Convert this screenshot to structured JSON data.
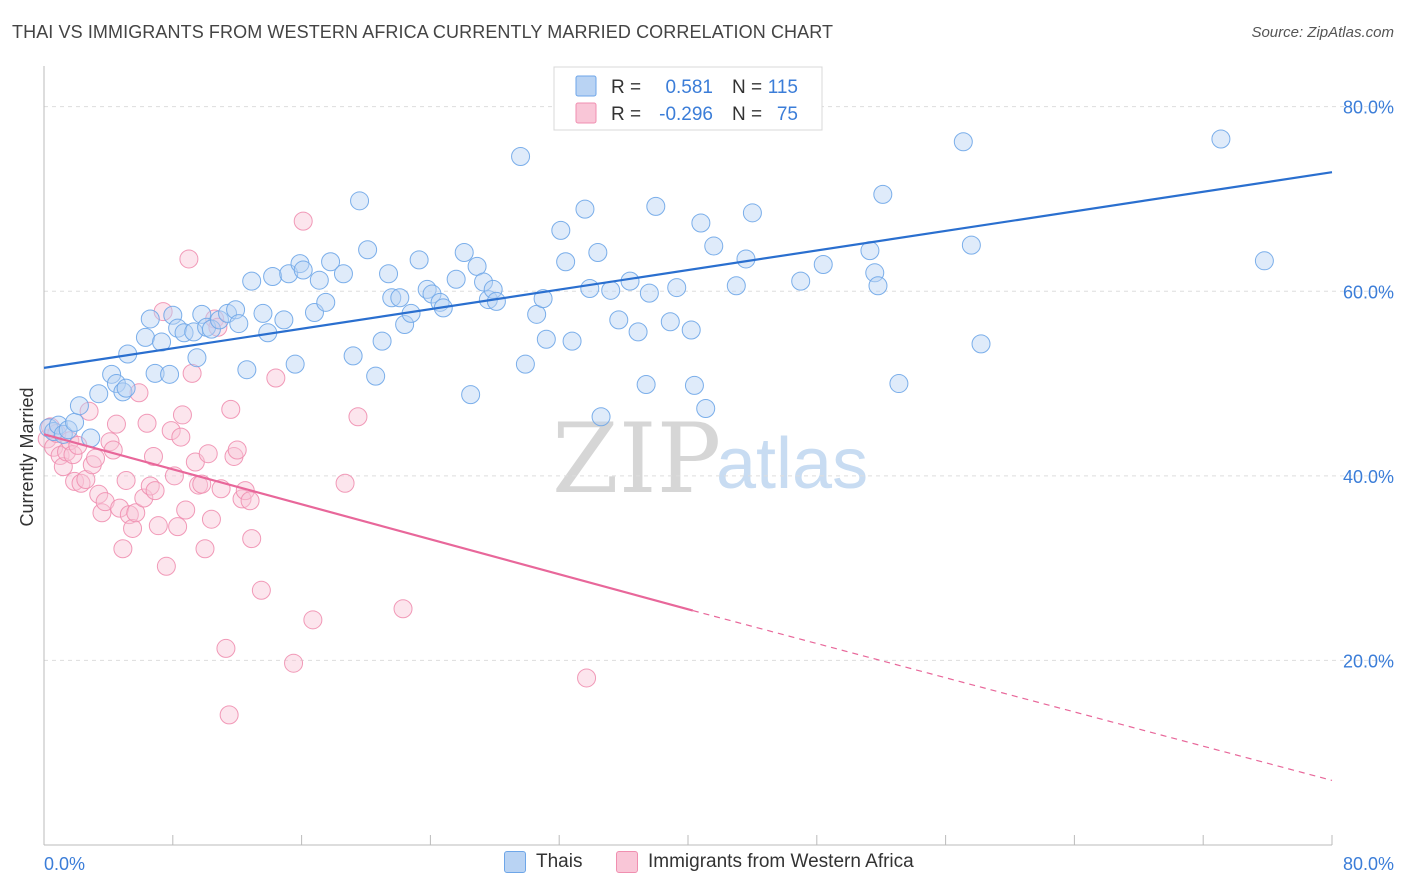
{
  "header": {
    "title": "THAI VS IMMIGRANTS FROM WESTERN AFRICA CURRENTLY MARRIED CORRELATION CHART",
    "source": "Source: ZipAtlas.com"
  },
  "colors": {
    "blue": "#6ea6e8",
    "blue_fill": "#b9d3f3",
    "blue_line": "#2a6fcf",
    "pink": "#f08fb0",
    "pink_fill": "#f9c6d7",
    "pink_line": "#e8679a",
    "tick_text": "#3b7dd8",
    "grid": "#dddddd"
  },
  "watermark": {
    "zip": "ZIP",
    "atlas": "atlas"
  },
  "legend": {
    "rows": [
      {
        "r_label": "R =",
        "r_value": "0.581",
        "n_label": "N =",
        "n_value": "115"
      },
      {
        "r_label": "R =",
        "r_value": "-0.296",
        "n_label": "N =",
        "n_value": "75"
      }
    ]
  },
  "bottom_legend": {
    "series1": "Thais",
    "series2": "Immigrants from Western Africa"
  },
  "chart_data": {
    "type": "scatter",
    "title": "THAI VS IMMIGRANTS FROM WESTERN AFRICA CURRENTLY MARRIED CORRELATION CHART",
    "xlabel": "",
    "ylabel": "Currently Married",
    "xlim": [
      0,
      80
    ],
    "ylim": [
      0,
      83
    ],
    "x_tick_labels": [
      "0.0%",
      "80.0%"
    ],
    "y_ticks": [
      20,
      40,
      60,
      80
    ],
    "y_tick_labels": [
      "20.0%",
      "40.0%",
      "60.0%",
      "80.0%"
    ],
    "grid": "horizontal dashed",
    "legend_position": "top-center",
    "series": [
      {
        "name": "Thais",
        "r": 0.581,
        "n": 115,
        "trend": {
          "x": [
            0,
            80
          ],
          "y": [
            51.7,
            72.9
          ]
        },
        "points": [
          [
            0.3,
            45.2
          ],
          [
            0.6,
            44.8
          ],
          [
            0.9,
            45.5
          ],
          [
            1.2,
            44.5
          ],
          [
            1.5,
            45.0
          ],
          [
            1.9,
            45.8
          ],
          [
            2.2,
            47.6
          ],
          [
            2.9,
            44.1
          ],
          [
            3.4,
            48.9
          ],
          [
            4.2,
            51.0
          ],
          [
            4.5,
            50.0
          ],
          [
            4.9,
            49.1
          ],
          [
            5.1,
            49.5
          ],
          [
            5.2,
            53.2
          ],
          [
            6.3,
            55.0
          ],
          [
            6.6,
            57.0
          ],
          [
            6.9,
            51.1
          ],
          [
            7.3,
            54.5
          ],
          [
            7.8,
            51.0
          ],
          [
            8.0,
            57.4
          ],
          [
            8.3,
            56.0
          ],
          [
            8.7,
            55.5
          ],
          [
            9.3,
            55.6
          ],
          [
            9.5,
            52.8
          ],
          [
            9.8,
            57.5
          ],
          [
            10.1,
            56.1
          ],
          [
            10.4,
            55.9
          ],
          [
            10.9,
            56.9
          ],
          [
            11.4,
            57.6
          ],
          [
            11.9,
            58.0
          ],
          [
            12.1,
            56.5
          ],
          [
            12.6,
            51.5
          ],
          [
            12.9,
            61.1
          ],
          [
            13.6,
            57.6
          ],
          [
            13.9,
            55.5
          ],
          [
            14.2,
            61.6
          ],
          [
            14.9,
            56.9
          ],
          [
            15.2,
            61.9
          ],
          [
            15.6,
            52.1
          ],
          [
            15.9,
            63.0
          ],
          [
            16.1,
            62.3
          ],
          [
            16.8,
            57.7
          ],
          [
            17.1,
            61.2
          ],
          [
            17.5,
            58.8
          ],
          [
            17.8,
            63.2
          ],
          [
            18.6,
            61.9
          ],
          [
            19.2,
            53.0
          ],
          [
            19.6,
            69.8
          ],
          [
            20.1,
            64.5
          ],
          [
            20.6,
            50.8
          ],
          [
            21.0,
            54.6
          ],
          [
            21.4,
            61.9
          ],
          [
            21.6,
            59.3
          ],
          [
            22.1,
            59.3
          ],
          [
            22.4,
            56.4
          ],
          [
            22.8,
            57.6
          ],
          [
            23.3,
            63.4
          ],
          [
            23.8,
            60.2
          ],
          [
            24.1,
            59.7
          ],
          [
            24.6,
            58.8
          ],
          [
            24.8,
            58.2
          ],
          [
            25.6,
            61.3
          ],
          [
            26.1,
            64.2
          ],
          [
            26.5,
            48.8
          ],
          [
            26.9,
            62.7
          ],
          [
            27.3,
            61.0
          ],
          [
            27.6,
            59.1
          ],
          [
            27.9,
            60.2
          ],
          [
            28.1,
            58.9
          ],
          [
            29.6,
            74.6
          ],
          [
            29.9,
            52.1
          ],
          [
            30.6,
            57.5
          ],
          [
            31.0,
            59.2
          ],
          [
            31.2,
            54.8
          ],
          [
            32.1,
            66.6
          ],
          [
            32.4,
            63.2
          ],
          [
            32.8,
            54.6
          ],
          [
            33.6,
            68.9
          ],
          [
            33.9,
            60.3
          ],
          [
            34.4,
            64.2
          ],
          [
            34.6,
            46.4
          ],
          [
            35.2,
            60.1
          ],
          [
            35.7,
            56.9
          ],
          [
            36.4,
            61.1
          ],
          [
            36.9,
            55.6
          ],
          [
            37.4,
            49.9
          ],
          [
            37.6,
            59.8
          ],
          [
            38.0,
            69.2
          ],
          [
            38.9,
            56.7
          ],
          [
            39.3,
            60.4
          ],
          [
            40.2,
            55.8
          ],
          [
            40.4,
            49.8
          ],
          [
            40.8,
            67.4
          ],
          [
            41.1,
            47.3
          ],
          [
            41.6,
            64.9
          ],
          [
            43.0,
            60.6
          ],
          [
            43.6,
            63.5
          ],
          [
            44.0,
            68.5
          ],
          [
            47.0,
            61.1
          ],
          [
            48.4,
            62.9
          ],
          [
            51.3,
            64.4
          ],
          [
            51.6,
            62.0
          ],
          [
            51.8,
            60.6
          ],
          [
            52.1,
            70.5
          ],
          [
            53.1,
            50.0
          ],
          [
            57.1,
            76.2
          ],
          [
            57.6,
            65.0
          ],
          [
            58.2,
            54.3
          ],
          [
            73.1,
            76.5
          ],
          [
            75.8,
            63.3
          ]
        ]
      },
      {
        "name": "Immigrants from Western Africa",
        "r": -0.296,
        "n": 75,
        "trend": {
          "x": [
            0,
            40.3,
            80
          ],
          "y": [
            44.5,
            25.4,
            7.0
          ],
          "solid_until_x": 40.3
        },
        "points": [
          [
            0.2,
            44.0
          ],
          [
            0.4,
            45.3
          ],
          [
            0.6,
            43.1
          ],
          [
            0.8,
            44.6
          ],
          [
            1.0,
            42.2
          ],
          [
            1.2,
            41.0
          ],
          [
            1.4,
            42.6
          ],
          [
            1.6,
            43.8
          ],
          [
            1.8,
            42.3
          ],
          [
            1.9,
            39.4
          ],
          [
            2.1,
            43.3
          ],
          [
            2.3,
            39.2
          ],
          [
            2.6,
            39.6
          ],
          [
            2.8,
            47.0
          ],
          [
            3.0,
            41.2
          ],
          [
            3.2,
            41.9
          ],
          [
            3.4,
            38.0
          ],
          [
            3.6,
            36.0
          ],
          [
            3.8,
            37.2
          ],
          [
            4.1,
            43.7
          ],
          [
            4.3,
            42.8
          ],
          [
            4.5,
            45.6
          ],
          [
            4.7,
            36.5
          ],
          [
            4.9,
            32.1
          ],
          [
            5.1,
            39.5
          ],
          [
            5.3,
            35.8
          ],
          [
            5.5,
            34.3
          ],
          [
            5.7,
            36.0
          ],
          [
            5.9,
            49.0
          ],
          [
            6.2,
            37.6
          ],
          [
            6.4,
            45.7
          ],
          [
            6.6,
            38.9
          ],
          [
            6.8,
            42.1
          ],
          [
            6.9,
            38.4
          ],
          [
            7.1,
            34.6
          ],
          [
            7.4,
            57.8
          ],
          [
            7.6,
            30.2
          ],
          [
            7.9,
            44.9
          ],
          [
            8.1,
            40.0
          ],
          [
            8.3,
            34.5
          ],
          [
            8.5,
            44.2
          ],
          [
            8.6,
            46.6
          ],
          [
            8.8,
            36.3
          ],
          [
            9.0,
            63.5
          ],
          [
            9.2,
            51.1
          ],
          [
            9.4,
            41.5
          ],
          [
            9.6,
            39.0
          ],
          [
            9.8,
            39.1
          ],
          [
            10.0,
            32.1
          ],
          [
            10.2,
            42.4
          ],
          [
            10.4,
            35.3
          ],
          [
            10.6,
            57.0
          ],
          [
            10.8,
            56.1
          ],
          [
            11.0,
            38.6
          ],
          [
            11.3,
            21.3
          ],
          [
            11.5,
            14.1
          ],
          [
            11.6,
            47.2
          ],
          [
            11.8,
            42.1
          ],
          [
            12.0,
            42.8
          ],
          [
            12.3,
            37.5
          ],
          [
            12.5,
            38.4
          ],
          [
            12.8,
            37.3
          ],
          [
            12.9,
            33.2
          ],
          [
            13.5,
            27.6
          ],
          [
            14.4,
            50.6
          ],
          [
            15.5,
            19.7
          ],
          [
            16.1,
            67.6
          ],
          [
            16.7,
            24.4
          ],
          [
            18.7,
            39.2
          ],
          [
            19.5,
            46.4
          ],
          [
            22.3,
            25.6
          ],
          [
            33.7,
            18.1
          ]
        ]
      }
    ]
  }
}
